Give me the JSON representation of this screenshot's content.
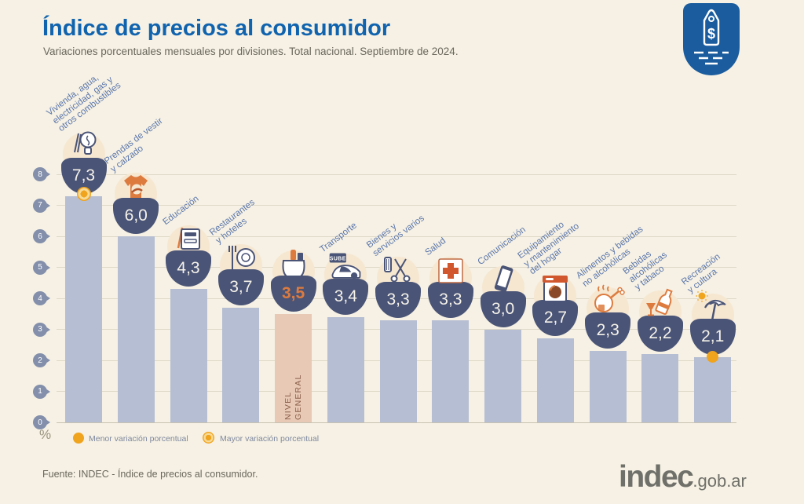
{
  "header": {
    "title": "Índice de precios al consumidor",
    "subtitle": "Variaciones porcentuales mensuales por divisiones. Total nacional. Septiembre de 2024."
  },
  "badge": {
    "currency_symbol": "$"
  },
  "chart_data": {
    "type": "bar",
    "title": "Índice de precios al consumidor",
    "subtitle": "Variaciones porcentuales mensuales por divisiones. Total nacional. Septiembre de 2024.",
    "unit": "%",
    "ylim": [
      0,
      8
    ],
    "yticks": [
      0,
      1,
      2,
      3,
      4,
      5,
      6,
      7,
      8
    ],
    "grid": true,
    "legend_position": "bottom-left",
    "categories": [
      "Vivienda, agua,\nelectricidad, gas y\notros combustibles",
      "Prendas de vestir\ny calzado",
      "Educación",
      "Restaurantes\ny hoteles",
      "NIVEL GENERAL",
      "Transporte",
      "Bienes y\nservicios varios",
      "Salud",
      "Comunicación",
      "Equipamiento\ny mantenimiento\ndel hogar",
      "Alimentos y bebidas\nno alcohólicas",
      "Bebidas\nalcohólicas\ny tabaco",
      "Recreación\ny cultura"
    ],
    "values": [
      7.3,
      6.0,
      4.3,
      3.7,
      3.5,
      3.4,
      3.3,
      3.3,
      3.0,
      2.7,
      2.3,
      2.2,
      2.1
    ],
    "value_labels": [
      "7,3",
      "6,0",
      "4,3",
      "3,7",
      "3,5",
      "3,4",
      "3,3",
      "3,3",
      "3,0",
      "2,7",
      "2,3",
      "2,2",
      "2,1"
    ],
    "icons": [
      "housing-utilities-icon",
      "clothing-icon",
      "education-icon",
      "restaurants-icon",
      "general-basket-icon",
      "transport-icon",
      "misc-goods-icon",
      "health-icon",
      "communication-icon",
      "home-equipment-icon",
      "food-icon",
      "alcohol-tobacco-icon",
      "recreation-icon"
    ],
    "highlight": {
      "index": 4,
      "label": "NIVEL\nGENERAL"
    },
    "transport_card_label": "SUBE",
    "annotations": {
      "max": {
        "index": 0,
        "value": 7.3,
        "label": "Mayor variación porcentual",
        "marker": "ringed-coin"
      },
      "min": {
        "index": 12,
        "value": 2.1,
        "label": "Menor variación porcentual",
        "marker": "solid-coin"
      }
    }
  },
  "legend": {
    "menor": "Menor variación porcentual",
    "mayor": "Mayor variación porcentual"
  },
  "footer": {
    "source": "Fuente: INDEC - Índice de precios al consumidor.",
    "logo_main": "indec",
    "logo_suffix": ".gob.ar"
  },
  "colors": {
    "bg": "#f6f1e4",
    "title": "#1063ae",
    "bar": "#b5bed2",
    "barhl": "#e8c9b6",
    "bowl": "#4a5476",
    "label": "#5b76ab",
    "tick": "#838fab",
    "grid": "#ded8c7",
    "coin": "#f0a31d",
    "orange": "#dd7b3f",
    "disc": "#f6e7d1",
    "badge": "#1a5c9e",
    "gray": "#6b675c",
    "hltext": "#8a5f49"
  }
}
